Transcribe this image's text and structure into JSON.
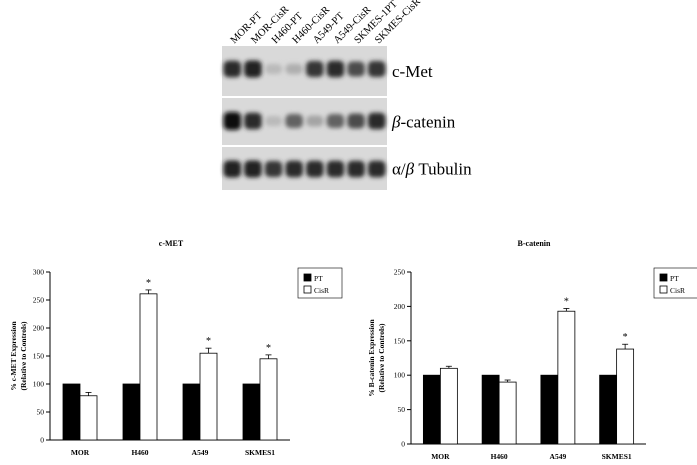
{
  "blot": {
    "lanes": [
      "MOR-PT",
      "MOR-CisR",
      "H460-PT",
      "H460-CisR",
      "A549-PT",
      "A549-CisR",
      "SKMES-1PT",
      "SKMES-CisR"
    ],
    "labels": [
      {
        "pre": "",
        "italic": "",
        "post": "c-Met"
      },
      {
        "pre": "",
        "italic": "β",
        "post": "-catenin"
      },
      {
        "pre": "α/",
        "italic": "β",
        "post": " Tubulin"
      }
    ],
    "band_intensity": [
      [
        0.85,
        0.9,
        0.2,
        0.25,
        0.8,
        0.85,
        0.7,
        0.8
      ],
      [
        1.0,
        0.85,
        0.2,
        0.6,
        0.3,
        0.6,
        0.7,
        0.85
      ],
      [
        0.9,
        0.9,
        0.8,
        0.85,
        0.85,
        0.85,
        0.85,
        0.85
      ]
    ]
  },
  "chart_data": [
    {
      "type": "bar",
      "title": "c-MET",
      "ylabel": "% c-MET Expression",
      "ylabel2": "(Relative to Controls)",
      "categories": [
        "MOR",
        "H460",
        "A549",
        "SKMES1"
      ],
      "series": [
        {
          "name": "PT",
          "values": [
            100,
            100,
            100,
            100
          ],
          "errors": [
            0,
            0,
            0,
            0
          ],
          "color": "#000000"
        },
        {
          "name": "CisR",
          "values": [
            79,
            261,
            155,
            145
          ],
          "errors": [
            6,
            7,
            9,
            7
          ],
          "color": "#ffffff"
        }
      ],
      "significance": [
        "",
        "*",
        "*",
        "*"
      ],
      "sig_marker": "*",
      "ylim": [
        0,
        300
      ],
      "yticks": [
        "0",
        "50",
        "100",
        "150",
        "200",
        "250",
        "300"
      ],
      "legend": "top-right",
      "grid": false
    },
    {
      "type": "bar",
      "title": "B-catenin",
      "ylabel": "% B-catenin Expression",
      "ylabel2": "(Relative to Controls)",
      "categories": [
        "MOR",
        "H460",
        "A549",
        "SKMES1"
      ],
      "series": [
        {
          "name": "PT",
          "values": [
            100,
            100,
            100,
            100
          ],
          "errors": [
            0,
            0,
            0,
            0
          ],
          "color": "#000000"
        },
        {
          "name": "CisR",
          "values": [
            110,
            90,
            193,
            138
          ],
          "errors": [
            3,
            3,
            4,
            7
          ],
          "color": "#ffffff"
        }
      ],
      "significance": [
        "",
        "",
        "*",
        "*"
      ],
      "sig_marker": "*",
      "ylim": [
        0,
        250
      ],
      "yticks": [
        "0",
        "50",
        "100",
        "150",
        "200",
        "250"
      ],
      "legend": "top-right",
      "grid": false
    }
  ]
}
